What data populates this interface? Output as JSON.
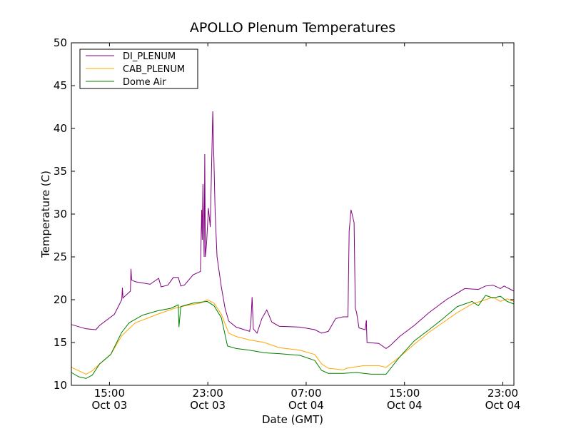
{
  "chart_data": {
    "type": "line",
    "title": "APOLLO Plenum Temperatures",
    "xlabel": "Date (GMT)",
    "ylabel": "Temperature (C)",
    "x_units": "hours since Oct 03 00:00 GMT",
    "xlim": [
      11.9,
      47.9
    ],
    "ylim": [
      10,
      50
    ],
    "yticks": [
      10,
      15,
      20,
      25,
      30,
      35,
      40,
      45,
      50
    ],
    "xticks": [
      {
        "value": 15,
        "time": "15:00",
        "date": "Oct 03"
      },
      {
        "value": 23,
        "time": "23:00",
        "date": "Oct 03"
      },
      {
        "value": 31,
        "time": "07:00",
        "date": "Oct 04"
      },
      {
        "value": 39,
        "time": "15:00",
        "date": "Oct 04"
      },
      {
        "value": 47,
        "time": "23:00",
        "date": "Oct 04"
      }
    ],
    "grid": false,
    "legend_position": "top-left",
    "series": [
      {
        "name": "DI_PLENUM",
        "color": "#800080",
        "points": [
          [
            11.9,
            17.1
          ],
          [
            13.1,
            16.6
          ],
          [
            13.9,
            16.5
          ],
          [
            14.2,
            17.0
          ],
          [
            15.4,
            18.3
          ],
          [
            16.0,
            20.0
          ],
          [
            16.05,
            21.4
          ],
          [
            16.1,
            20.2
          ],
          [
            16.7,
            21.0
          ],
          [
            16.75,
            23.6
          ],
          [
            16.8,
            22.3
          ],
          [
            17.1,
            22.1
          ],
          [
            18.3,
            21.8
          ],
          [
            19.0,
            22.5
          ],
          [
            19.2,
            21.5
          ],
          [
            19.75,
            21.7
          ],
          [
            20.2,
            22.6
          ],
          [
            20.6,
            22.6
          ],
          [
            20.8,
            21.6
          ],
          [
            21.1,
            21.7
          ],
          [
            21.8,
            22.9
          ],
          [
            22.4,
            23.3
          ],
          [
            22.5,
            30.5
          ],
          [
            22.55,
            27
          ],
          [
            22.6,
            33.5
          ],
          [
            22.7,
            25
          ],
          [
            22.75,
            37
          ],
          [
            22.8,
            25
          ],
          [
            22.9,
            26.5
          ],
          [
            23.05,
            30.7
          ],
          [
            23.2,
            28.5
          ],
          [
            23.4,
            42
          ],
          [
            23.6,
            30
          ],
          [
            23.75,
            25
          ],
          [
            24.1,
            21.5
          ],
          [
            24.4,
            19
          ],
          [
            24.7,
            17.5
          ],
          [
            25.3,
            16.8
          ],
          [
            26.4,
            16.3
          ],
          [
            26.5,
            17.2
          ],
          [
            26.6,
            20.3
          ],
          [
            26.7,
            16.6
          ],
          [
            27.0,
            16.1
          ],
          [
            27.4,
            17.8
          ],
          [
            27.8,
            18.8
          ],
          [
            28.2,
            17.4
          ],
          [
            28.8,
            16.9
          ],
          [
            30.5,
            16.8
          ],
          [
            31.7,
            16.5
          ],
          [
            32.25,
            16.1
          ],
          [
            32.8,
            16.3
          ],
          [
            33.4,
            17.8
          ],
          [
            34.0,
            18.0
          ],
          [
            34.4,
            18.0
          ],
          [
            34.5,
            28
          ],
          [
            34.65,
            30.5
          ],
          [
            34.9,
            29
          ],
          [
            35.0,
            19
          ],
          [
            35.1,
            18.5
          ],
          [
            35.3,
            16.7
          ],
          [
            35.8,
            16.5
          ],
          [
            35.9,
            17.6
          ],
          [
            35.95,
            15.0
          ],
          [
            36.9,
            14.9
          ],
          [
            37.5,
            14.3
          ],
          [
            37.8,
            14.6
          ],
          [
            38.6,
            15.7
          ],
          [
            39.8,
            17.0
          ],
          [
            41.0,
            18.5
          ],
          [
            42.4,
            20.0
          ],
          [
            43.9,
            21.3
          ],
          [
            45.0,
            21.2
          ],
          [
            45.6,
            21.6
          ],
          [
            46.2,
            21.7
          ],
          [
            46.8,
            21.3
          ],
          [
            47.1,
            21.6
          ],
          [
            47.9,
            21.0
          ]
        ]
      },
      {
        "name": "CAB_PLENUM",
        "color": "#ffa500",
        "points": [
          [
            11.9,
            12.1
          ],
          [
            12.5,
            11.7
          ],
          [
            13.1,
            11.3
          ],
          [
            13.6,
            11.7
          ],
          [
            14.2,
            12.5
          ],
          [
            15.1,
            13.6
          ],
          [
            16.0,
            15.8
          ],
          [
            17.1,
            17.3
          ],
          [
            18.9,
            18.3
          ],
          [
            20.3,
            19.0
          ],
          [
            21.2,
            19.3
          ],
          [
            22.4,
            19.6
          ],
          [
            22.95,
            20.0
          ],
          [
            23.5,
            19.6
          ],
          [
            24.1,
            18.3
          ],
          [
            24.7,
            16.1
          ],
          [
            25.3,
            15.7
          ],
          [
            26.4,
            15.3
          ],
          [
            27.6,
            15.0
          ],
          [
            28.8,
            14.4
          ],
          [
            30.5,
            14.1
          ],
          [
            31.7,
            13.6
          ],
          [
            32.25,
            12.5
          ],
          [
            32.8,
            12.0
          ],
          [
            34.0,
            11.8
          ],
          [
            34.3,
            12.0
          ],
          [
            35.7,
            12.3
          ],
          [
            36.9,
            12.3
          ],
          [
            37.5,
            12.1
          ],
          [
            38.6,
            13.3
          ],
          [
            39.8,
            14.8
          ],
          [
            41.0,
            16.2
          ],
          [
            42.1,
            17.3
          ],
          [
            43.3,
            18.5
          ],
          [
            44.5,
            19.5
          ],
          [
            45.6,
            20.0
          ],
          [
            46.2,
            20.3
          ],
          [
            46.8,
            19.8
          ],
          [
            47.35,
            20.1
          ],
          [
            47.9,
            19.8
          ]
        ]
      },
      {
        "name": "Dome Air",
        "color": "#008000",
        "points": [
          [
            11.9,
            11.5
          ],
          [
            12.5,
            11.0
          ],
          [
            13.1,
            10.8
          ],
          [
            13.6,
            11.2
          ],
          [
            14.2,
            12.5
          ],
          [
            15.1,
            13.6
          ],
          [
            16.0,
            16.2
          ],
          [
            16.6,
            17.3
          ],
          [
            17.7,
            18.2
          ],
          [
            18.9,
            18.7
          ],
          [
            20.0,
            19.0
          ],
          [
            20.6,
            19.4
          ],
          [
            20.65,
            16.8
          ],
          [
            20.8,
            19.2
          ],
          [
            21.8,
            19.6
          ],
          [
            22.95,
            19.8
          ],
          [
            23.5,
            19.3
          ],
          [
            24.1,
            17.9
          ],
          [
            24.6,
            14.6
          ],
          [
            25.3,
            14.3
          ],
          [
            26.4,
            14.1
          ],
          [
            27.6,
            13.8
          ],
          [
            28.8,
            13.7
          ],
          [
            30.5,
            13.5
          ],
          [
            31.7,
            12.9
          ],
          [
            32.25,
            11.75
          ],
          [
            32.8,
            11.4
          ],
          [
            34.0,
            11.4
          ],
          [
            35.1,
            11.5
          ],
          [
            36.3,
            11.3
          ],
          [
            37.5,
            11.3
          ],
          [
            38.6,
            13.3
          ],
          [
            39.8,
            15.2
          ],
          [
            41.0,
            16.5
          ],
          [
            42.1,
            17.75
          ],
          [
            43.3,
            19.2
          ],
          [
            44.5,
            19.8
          ],
          [
            45.0,
            19.3
          ],
          [
            45.6,
            20.5
          ],
          [
            46.2,
            20.2
          ],
          [
            46.8,
            20.4
          ],
          [
            47.35,
            19.8
          ],
          [
            47.9,
            19.5
          ]
        ]
      }
    ]
  }
}
